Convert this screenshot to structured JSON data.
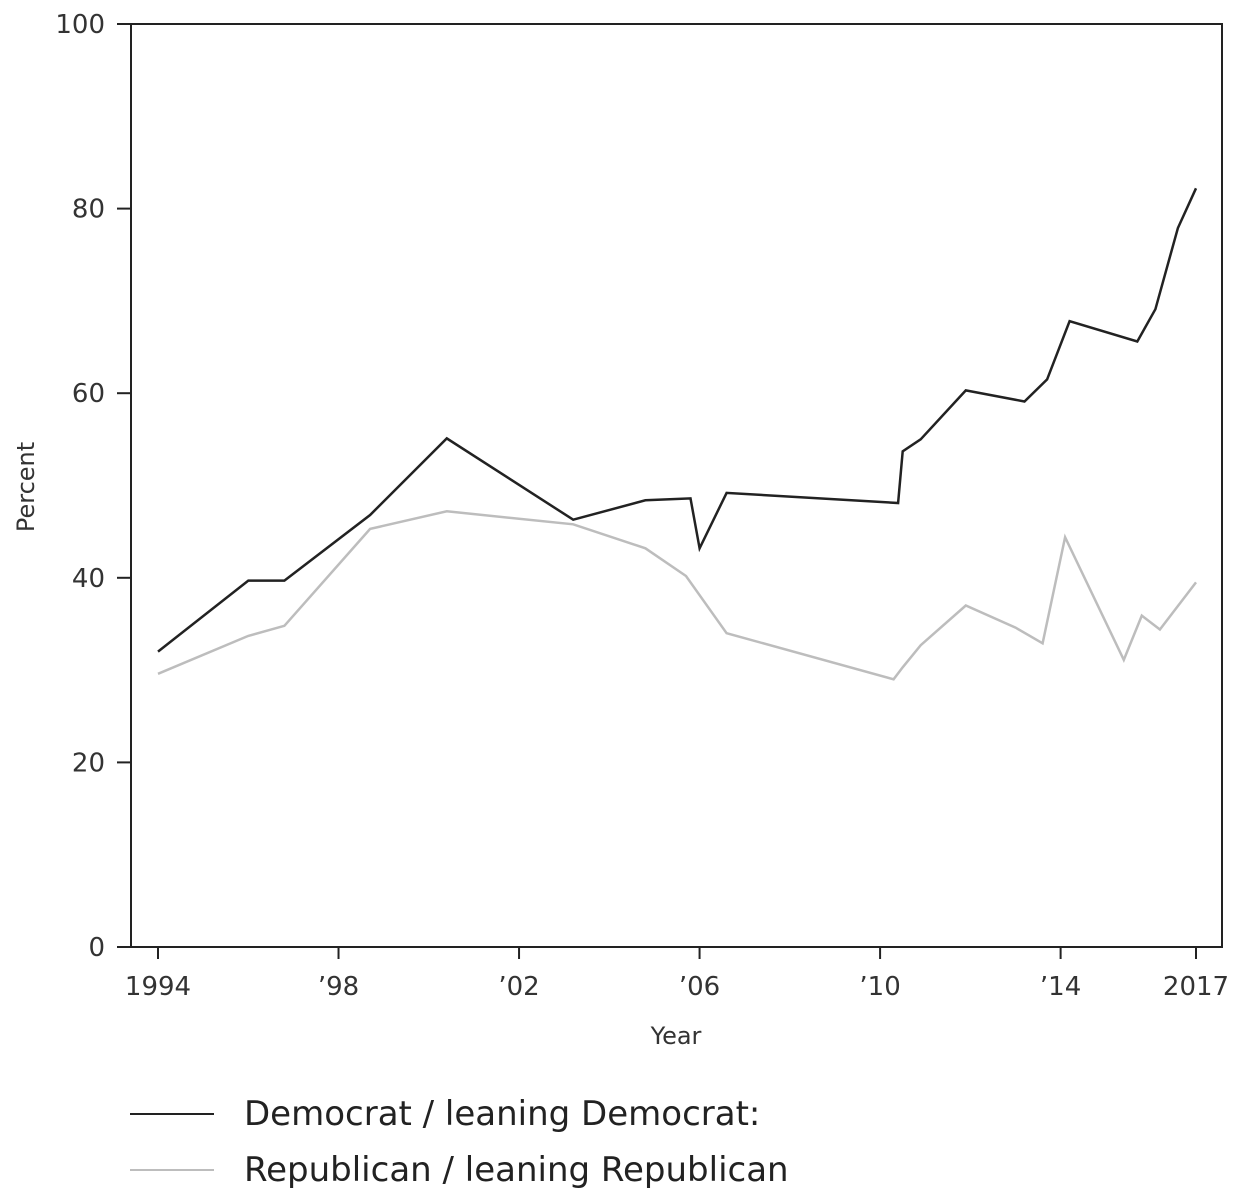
{
  "chart_data": {
    "type": "line",
    "xlabel": "Year",
    "ylabel": "Percent",
    "xlim": [
      1994,
      2017
    ],
    "ylim": [
      0,
      100
    ],
    "grid": false,
    "legend_position": "bottom-left",
    "x_ticks": [
      {
        "value": 1994,
        "label": "1994"
      },
      {
        "value": 1998,
        "label": "’98"
      },
      {
        "value": 2002,
        "label": "’02"
      },
      {
        "value": 2006,
        "label": "’06"
      },
      {
        "value": 2010,
        "label": "’10"
      },
      {
        "value": 2014,
        "label": "’14"
      },
      {
        "value": 2017,
        "label": "2017"
      }
    ],
    "y_ticks": [
      {
        "value": 0,
        "label": "0"
      },
      {
        "value": 20,
        "label": "20"
      },
      {
        "value": 40,
        "label": "40"
      },
      {
        "value": 60,
        "label": "60"
      },
      {
        "value": 80,
        "label": "80"
      },
      {
        "value": 100,
        "label": "100"
      }
    ],
    "series": [
      {
        "name": "Democrat / leaning Democrat:",
        "color": "#222222",
        "x": [
          1994,
          1996,
          1996.8,
          1998.7,
          2000.4,
          2003.2,
          2004.8,
          2005.8,
          2006,
          2006.6,
          2010.4,
          2010.5,
          2010.9,
          2011.9,
          2013.2,
          2013.7,
          2014.2,
          2015.7,
          2016.1,
          2016.6,
          2017
        ],
        "values": [
          32,
          39.7,
          39.7,
          46.8,
          55.1,
          46.3,
          48.4,
          48.6,
          43.2,
          49.2,
          48.1,
          53.7,
          55,
          60.3,
          59.1,
          61.5,
          67.8,
          65.6,
          69.1,
          77.9,
          82.2
        ]
      },
      {
        "name": "Republican / leaning Republican",
        "color": "#bdbdbd",
        "x": [
          1994,
          1996,
          1996.8,
          1998.7,
          2000.4,
          2003.2,
          2004.8,
          2005.7,
          2006.6,
          2010.3,
          2010.5,
          2010.9,
          2011.9,
          2013.0,
          2013.6,
          2014.1,
          2015.4,
          2015.8,
          2016.2,
          2017
        ],
        "values": [
          29.6,
          33.7,
          34.8,
          45.3,
          47.2,
          45.8,
          43.2,
          40.2,
          34,
          29,
          30.3,
          32.7,
          37,
          34.6,
          32.9,
          44.4,
          31.1,
          35.9,
          34.4,
          39.5
        ]
      }
    ]
  }
}
